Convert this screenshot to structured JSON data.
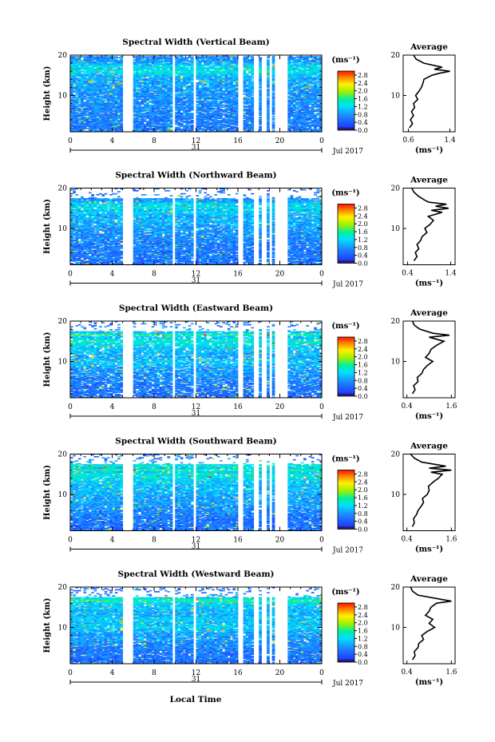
{
  "chart_data": [
    {
      "type": "heatmap",
      "title": "Spectral Width (Vertical Beam)",
      "ylabel": "Height (km)",
      "x_ticks": [
        "0",
        "4",
        "8",
        "12",
        "16",
        "20",
        "0"
      ],
      "x_range": [
        0,
        24
      ],
      "y_ticks": [
        "20",
        "10"
      ],
      "y_range": [
        1,
        20
      ],
      "date_day": "31",
      "date_label": "Jul 2017",
      "colorbar": {
        "unit": "(ms⁻¹)",
        "ticks": [
          "2.8",
          "2.4",
          "2.0",
          "1.6",
          "1.2",
          "0.8",
          "0.4",
          "0.0"
        ],
        "range": [
          0.0,
          3.0
        ]
      },
      "gaps_hours": [
        [
          5.1,
          6.0
        ],
        [
          9.8,
          10.1
        ],
        [
          11.8,
          12.1
        ],
        [
          16.1,
          16.5
        ],
        [
          17.4,
          18.0
        ],
        [
          18.3,
          18.7
        ],
        [
          19.0,
          19.3
        ],
        [
          19.5,
          20.7
        ]
      ],
      "average": {
        "title": "Average",
        "xlabel": "(ms⁻¹)",
        "x_ticks": [
          "0.6",
          "1.4"
        ],
        "x_range": [
          0.5,
          1.5
        ],
        "y_ticks": [
          "20",
          "10"
        ],
        "height_km": [
          2,
          3,
          4,
          5,
          6,
          7,
          8,
          9,
          10,
          11,
          12,
          13,
          14,
          15,
          15.5,
          16,
          16.5,
          17,
          18,
          19,
          20
        ],
        "value": [
          0.62,
          0.68,
          0.64,
          0.7,
          0.66,
          0.72,
          0.7,
          0.78,
          0.74,
          0.8,
          0.85,
          0.88,
          0.9,
          1.05,
          1.2,
          1.4,
          1.1,
          1.25,
          0.9,
          0.75,
          0.7
        ]
      }
    },
    {
      "type": "heatmap",
      "title": "Spectral Width (Northward Beam)",
      "ylabel": "Height (km)",
      "x_ticks": [
        "0",
        "4",
        "8",
        "12",
        "16",
        "20",
        "0"
      ],
      "x_range": [
        0,
        24
      ],
      "y_ticks": [
        "20",
        "10"
      ],
      "y_range": [
        1,
        20
      ],
      "date_day": "31",
      "date_label": "Jul 2017",
      "colorbar": {
        "unit": "(ms⁻¹)",
        "ticks": [
          "2.8",
          "2.4",
          "2.0",
          "1.6",
          "1.2",
          "0.8",
          "0.4",
          "0.0"
        ],
        "range": [
          0.0,
          3.0
        ]
      },
      "gaps_hours": [
        [
          5.1,
          6.0
        ],
        [
          9.8,
          10.1
        ],
        [
          11.8,
          12.1
        ],
        [
          16.1,
          16.5
        ],
        [
          17.4,
          18.0
        ],
        [
          18.3,
          18.7
        ],
        [
          19.0,
          19.3
        ],
        [
          19.5,
          20.7
        ]
      ],
      "average": {
        "title": "Average",
        "xlabel": "(ms⁻¹)",
        "x_ticks": [
          "0.4",
          "1.4"
        ],
        "x_range": [
          0.3,
          1.5
        ],
        "y_ticks": [
          "20",
          "10"
        ],
        "height_km": [
          2,
          3,
          4,
          5,
          6,
          7,
          8,
          9,
          10,
          11,
          12,
          13,
          14,
          14.5,
          15,
          15.5,
          16,
          16.5,
          17,
          18,
          19,
          20
        ],
        "value": [
          0.55,
          0.62,
          0.58,
          0.66,
          0.62,
          0.7,
          0.74,
          0.85,
          0.8,
          0.92,
          1.0,
          0.88,
          1.2,
          0.95,
          1.35,
          1.05,
          1.3,
          0.9,
          0.8,
          0.65,
          0.55,
          0.5
        ]
      }
    },
    {
      "type": "heatmap",
      "title": "Spectral Width (Eastward Beam)",
      "ylabel": "Height (km)",
      "x_ticks": [
        "0",
        "4",
        "8",
        "12",
        "16",
        "20",
        "0"
      ],
      "x_range": [
        0,
        24
      ],
      "y_ticks": [
        "20",
        "10"
      ],
      "y_range": [
        1,
        20
      ],
      "date_day": "31",
      "date_label": "Jul 2017",
      "colorbar": {
        "unit": "(ms⁻¹)",
        "ticks": [
          "2.8",
          "2.4",
          "2.0",
          "1.6",
          "1.2",
          "0.8",
          "0.4",
          "0.0"
        ],
        "range": [
          0.0,
          3.0
        ]
      },
      "gaps_hours": [
        [
          5.1,
          6.0
        ],
        [
          9.8,
          10.1
        ],
        [
          11.8,
          12.1
        ],
        [
          16.1,
          16.5
        ],
        [
          17.4,
          18.0
        ],
        [
          18.3,
          18.7
        ],
        [
          19.0,
          19.3
        ],
        [
          19.5,
          20.7
        ]
      ],
      "average": {
        "title": "Average",
        "xlabel": "(ms⁻¹)",
        "x_ticks": [
          "0.4",
          "1.6"
        ],
        "x_range": [
          0.3,
          1.7
        ],
        "y_ticks": [
          "20",
          "10"
        ],
        "height_km": [
          2,
          3,
          4,
          5,
          6,
          7,
          8,
          9,
          10,
          11,
          12,
          13,
          14,
          15,
          16,
          16.5,
          17,
          18,
          19,
          20
        ],
        "value": [
          0.55,
          0.62,
          0.58,
          0.7,
          0.68,
          0.8,
          0.85,
          0.95,
          1.1,
          0.9,
          1.0,
          1.05,
          1.2,
          1.4,
          1.0,
          1.55,
          1.1,
          0.75,
          0.6,
          0.55
        ]
      }
    },
    {
      "type": "heatmap",
      "title": "Spectral Width (Southward Beam)",
      "ylabel": "Height (km)",
      "x_ticks": [
        "0",
        "4",
        "8",
        "12",
        "16",
        "20",
        "0"
      ],
      "x_range": [
        0,
        24
      ],
      "y_ticks": [
        "20",
        "10"
      ],
      "y_range": [
        1,
        20
      ],
      "date_day": "31",
      "date_label": "Jul 2017",
      "colorbar": {
        "unit": "(ms⁻¹)",
        "ticks": [
          "2.8",
          "2.4",
          "2.0",
          "1.6",
          "1.2",
          "0.8",
          "0.4",
          "0.0"
        ],
        "range": [
          0.0,
          3.0
        ]
      },
      "gaps_hours": [
        [
          5.1,
          6.0
        ],
        [
          9.8,
          10.1
        ],
        [
          11.8,
          12.1
        ],
        [
          16.1,
          16.5
        ],
        [
          17.4,
          18.0
        ],
        [
          18.3,
          18.7
        ],
        [
          19.0,
          19.3
        ],
        [
          19.5,
          20.7
        ]
      ],
      "average": {
        "title": "Average",
        "xlabel": "(ms⁻¹)",
        "x_ticks": [
          "0.4",
          "1.6"
        ],
        "x_range": [
          0.3,
          1.7
        ],
        "y_ticks": [
          "20",
          "10"
        ],
        "height_km": [
          2,
          3,
          4,
          5,
          6,
          7,
          8,
          9,
          10,
          11,
          12,
          13,
          14,
          15,
          15.5,
          16,
          16.5,
          17,
          18,
          19,
          20
        ],
        "value": [
          0.55,
          0.6,
          0.58,
          0.66,
          0.7,
          0.78,
          0.85,
          0.82,
          0.95,
          1.0,
          0.98,
          1.1,
          1.25,
          1.35,
          1.05,
          1.6,
          1.0,
          1.45,
          0.8,
          0.6,
          0.5
        ]
      }
    },
    {
      "type": "heatmap",
      "title": "Spectral Width (Westward Beam)",
      "ylabel": "Height (km)",
      "x_ticks": [
        "0",
        "4",
        "8",
        "12",
        "16",
        "20",
        "0"
      ],
      "x_range": [
        0,
        24
      ],
      "y_ticks": [
        "20",
        "10"
      ],
      "y_range": [
        1,
        20
      ],
      "date_day": "31",
      "date_label": "Jul 2017",
      "colorbar": {
        "unit": "(ms⁻¹)",
        "ticks": [
          "2.8",
          "2.4",
          "2.0",
          "1.6",
          "1.2",
          "0.8",
          "0.4",
          "0.0"
        ],
        "range": [
          0.0,
          3.0
        ]
      },
      "gaps_hours": [
        [
          5.1,
          6.0
        ],
        [
          9.8,
          10.1
        ],
        [
          11.8,
          12.1
        ],
        [
          16.1,
          16.5
        ],
        [
          17.4,
          18.0
        ],
        [
          18.3,
          18.7
        ],
        [
          19.0,
          19.3
        ],
        [
          19.5,
          20.7
        ]
      ],
      "average": {
        "title": "Average",
        "xlabel": "(ms⁻¹)",
        "x_ticks": [
          "0.4",
          "1.6"
        ],
        "x_range": [
          0.3,
          1.7
        ],
        "y_ticks": [
          "20",
          "10"
        ],
        "height_km": [
          2,
          3,
          4,
          5,
          6,
          7,
          8,
          9,
          10,
          11,
          12,
          13,
          14,
          15,
          16,
          16.5,
          17,
          18,
          19,
          20
        ],
        "value": [
          0.55,
          0.62,
          0.6,
          0.7,
          0.72,
          0.85,
          0.8,
          0.95,
          1.15,
          1.0,
          1.1,
          0.9,
          1.0,
          1.05,
          1.2,
          1.6,
          1.3,
          0.7,
          0.55,
          0.5
        ]
      }
    }
  ],
  "x_axis_title": "Local Time"
}
